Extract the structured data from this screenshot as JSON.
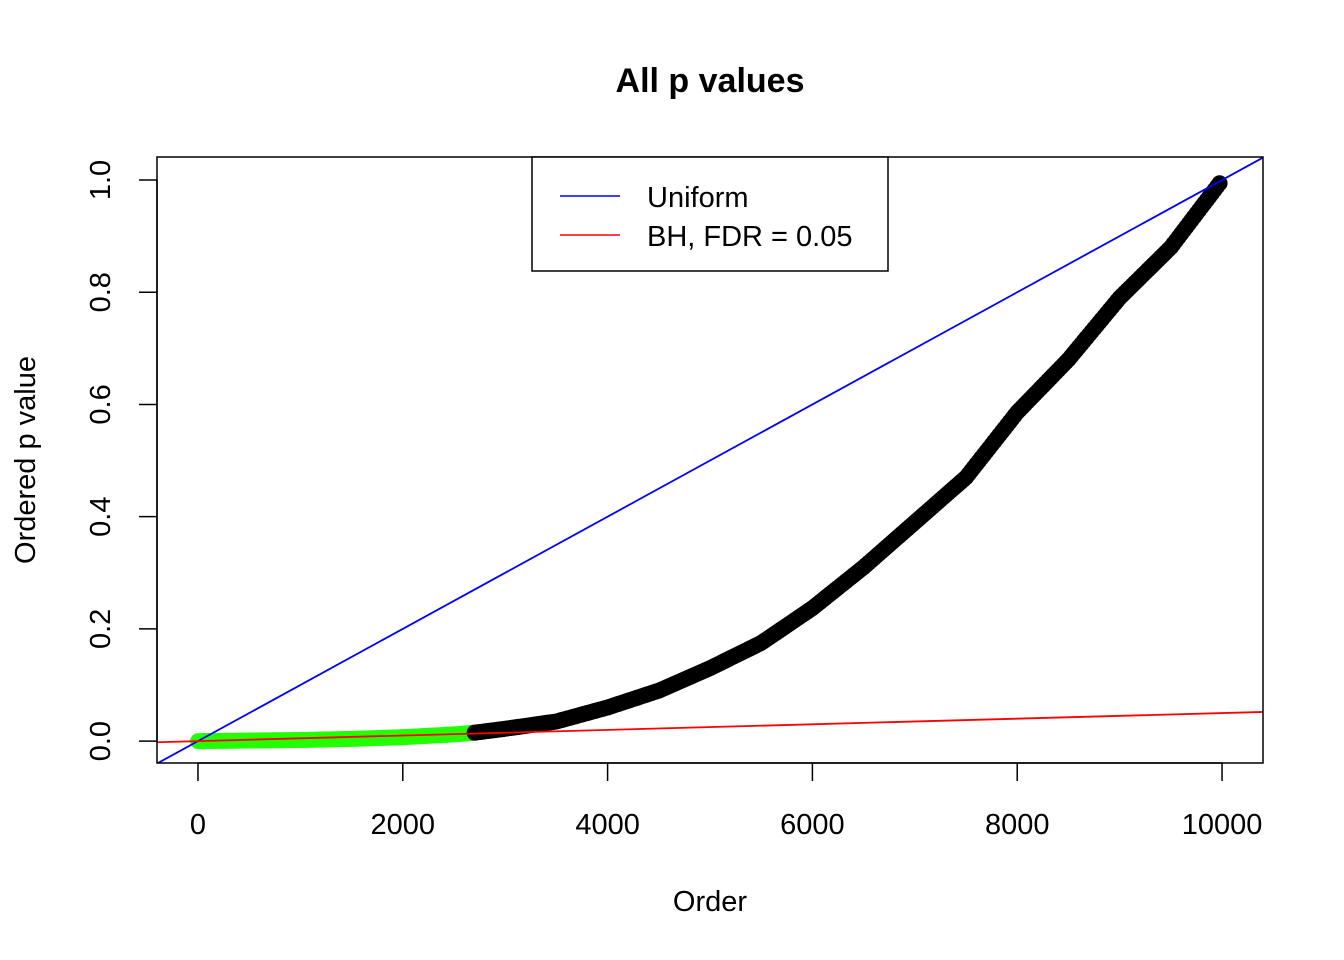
{
  "chart_data": {
    "type": "scatter",
    "title": "All p values",
    "xlabel": "Order",
    "ylabel": "Ordered p value",
    "xlim": [
      -400,
      10400
    ],
    "ylim": [
      -0.039,
      1.041
    ],
    "xticks": [
      0,
      2000,
      4000,
      6000,
      8000,
      10000
    ],
    "xtick_labels": [
      "0",
      "2000",
      "4000",
      "6000",
      "8000",
      "10000"
    ],
    "yticks": [
      0,
      0.2,
      0.4,
      0.6,
      0.8,
      1.0
    ],
    "ytick_labels": [
      "0.0",
      "0.2",
      "0.4",
      "0.6",
      "0.8",
      "1.0"
    ],
    "grid": false,
    "legend_placement": "top",
    "series": [
      {
        "type": "points",
        "x": [
          1,
          500,
          1000,
          1500,
          2000,
          2500,
          2700,
          3000,
          3500,
          4000,
          4500,
          5000,
          5500,
          6000,
          6500,
          7000,
          7500,
          8000,
          8500,
          9000,
          9500,
          10000
        ],
        "y": [
          0.0,
          0.001,
          0.002,
          0.004,
          0.007,
          0.012,
          0.015,
          0.022,
          0.035,
          0.06,
          0.09,
          0.13,
          0.175,
          0.237,
          0.31,
          0.39,
          0.47,
          0.586,
          0.68,
          0.79,
          0.88,
          1.0
        ],
        "color": "#000000",
        "highlight_color": "#22ff00",
        "highlight_until_x": 2700
      },
      {
        "name": "Uniform",
        "type": "line",
        "intercept": 0,
        "slope": 0.0001,
        "color": "#0000ff"
      },
      {
        "name": "BH, FDR = 0.05",
        "type": "line",
        "intercept": 0,
        "slope": 5e-06,
        "color": "#ff0000"
      }
    ]
  }
}
